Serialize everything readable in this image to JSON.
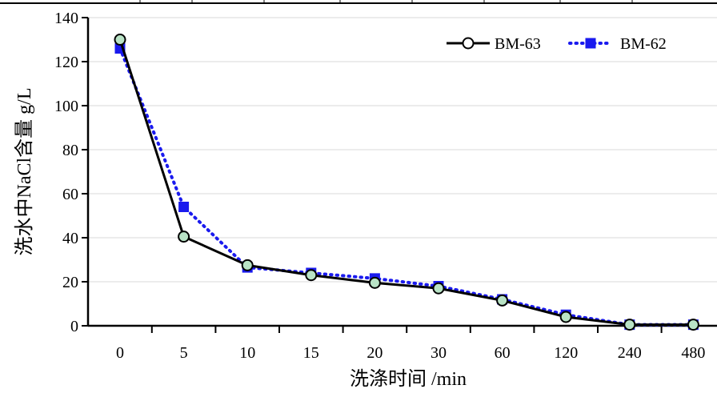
{
  "chart_data": {
    "type": "line",
    "title": "",
    "xlabel": "洗涤时间 /min",
    "ylabel": "洗水中NaCl含量 g/L",
    "categories": [
      "0",
      "5",
      "10",
      "15",
      "20",
      "30",
      "60",
      "120",
      "240",
      "480"
    ],
    "ylim": [
      0,
      140
    ],
    "yticks": [
      "0",
      "20",
      "40",
      "60",
      "80",
      "100",
      "120",
      "140"
    ],
    "grid": true,
    "legend_position": "top-right",
    "series": [
      {
        "name": "BM-63",
        "values": [
          130,
          40.5,
          27.5,
          23,
          19.5,
          17,
          11.5,
          4,
          0.5,
          0.5
        ],
        "color": "#000000",
        "marker": "circle",
        "marker_fill": "#b9e3c6",
        "line_style": "solid"
      },
      {
        "name": "BM-62",
        "values": [
          126,
          54,
          26.5,
          24,
          21.5,
          18,
          12,
          5,
          0.5,
          0.5
        ],
        "color": "#1a1aee",
        "marker": "square",
        "marker_fill": "#1a1aee",
        "line_style": "dotted"
      }
    ]
  }
}
